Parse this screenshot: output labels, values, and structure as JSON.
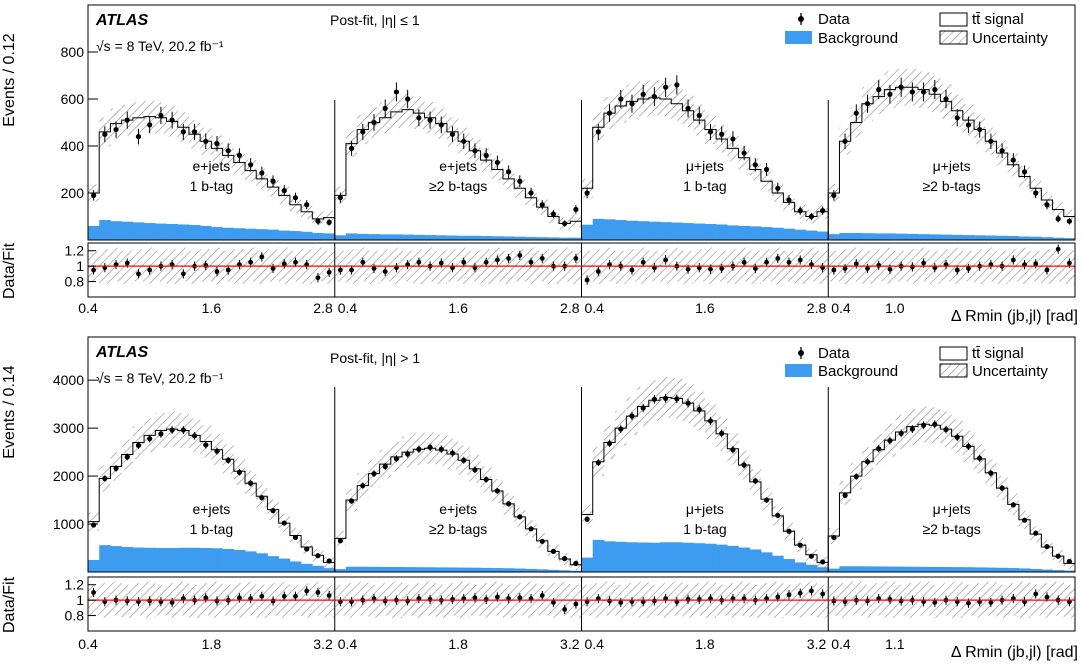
{
  "figure": {
    "experiment": "ATLAS",
    "energy_label": "√s = 8 TeV, 20.2 fb⁻¹",
    "legend": {
      "data": "Data",
      "background": "Background",
      "signal": "tt̄ signal",
      "uncertainty": "Uncertainty"
    },
    "x_axis_title": "Δ Rmin (jb,jl) [rad]",
    "ratio_ylabel": "Data/Fit"
  },
  "colors": {
    "background": "#3d9bf0",
    "ratio_line": "#ff0000",
    "hatch": "#888888"
  },
  "chart_data": [
    {
      "type": "bar",
      "title": "Post-fit, |η| ≤ 1",
      "ylabel": "Events / 0.12",
      "ylim": [
        0,
        1000
      ],
      "yticks": [
        200,
        400,
        600,
        800
      ],
      "ratio_ylim": [
        0.6,
        1.3
      ],
      "ratio_yticks": [
        "0.8",
        "1",
        "1.2"
      ],
      "x_range": [
        0.4,
        2.8
      ],
      "channels": [
        {
          "label": [
            "e+jets",
            "1 b-tag"
          ],
          "xticks": [
            "0.4",
            "1.6",
            "2.8"
          ],
          "signal": [
            200,
            460,
            495,
            510,
            520,
            525,
            520,
            505,
            480,
            450,
            420,
            390,
            360,
            330,
            295,
            260,
            225,
            190,
            150,
            120,
            90,
            95
          ],
          "data": [
            190,
            450,
            470,
            510,
            440,
            490,
            530,
            510,
            460,
            460,
            420,
            410,
            380,
            360,
            320,
            285,
            250,
            210,
            180,
            150,
            80,
            75
          ],
          "background": [
            60,
            85,
            80,
            78,
            75,
            72,
            70,
            68,
            66,
            64,
            60,
            55,
            52,
            50,
            48,
            46,
            44,
            40,
            38,
            35,
            30,
            28
          ],
          "ratio": [
            0.95,
            0.98,
            1.02,
            1.04,
            0.9,
            0.95,
            1.0,
            1.02,
            0.9,
            1.0,
            1.01,
            0.93,
            0.95,
            1.02,
            1.05,
            1.12,
            0.97,
            1.03,
            1.05,
            1.02,
            0.85,
            0.92
          ]
        },
        {
          "label": [
            "e+jets",
            "≥2 b-tags"
          ],
          "xticks": [
            "0.4",
            "1.6",
            "2.8"
          ],
          "signal": [
            190,
            410,
            470,
            500,
            520,
            545,
            555,
            540,
            520,
            495,
            460,
            420,
            380,
            340,
            300,
            260,
            220,
            180,
            140,
            100,
            70,
            80
          ],
          "data": [
            180,
            390,
            460,
            500,
            560,
            630,
            600,
            520,
            510,
            490,
            450,
            420,
            380,
            360,
            330,
            290,
            250,
            200,
            150,
            110,
            70,
            130
          ],
          "background": [
            20,
            28,
            26,
            25,
            24,
            24,
            23,
            22,
            21,
            20,
            19,
            18,
            18,
            17,
            16,
            15,
            14,
            13,
            12,
            11,
            10,
            10
          ],
          "ratio": [
            0.95,
            0.95,
            1.05,
            0.97,
            0.93,
            0.98,
            1.02,
            1.05,
            1.0,
            1.04,
            0.98,
            1.05,
            0.98,
            1.05,
            1.08,
            1.1,
            1.14,
            1.05,
            1.1,
            1.0,
            1.0,
            1.1
          ]
        },
        {
          "label": [
            "μ+jets",
            "1 b-tag"
          ],
          "xticks": [
            "0.4",
            "1.6",
            "2.8"
          ],
          "signal": [
            220,
            480,
            540,
            570,
            590,
            600,
            605,
            600,
            580,
            550,
            510,
            470,
            430,
            390,
            350,
            300,
            250,
            200,
            160,
            120,
            100,
            120
          ],
          "data": [
            200,
            460,
            540,
            600,
            580,
            620,
            610,
            650,
            660,
            560,
            530,
            460,
            450,
            430,
            370,
            320,
            300,
            220,
            170,
            125,
            100,
            125
          ],
          "background": [
            65,
            90,
            88,
            85,
            82,
            80,
            78,
            76,
            74,
            72,
            70,
            68,
            66,
            62,
            60,
            58,
            55,
            52,
            48,
            44,
            40,
            36
          ],
          "ratio": [
            0.82,
            0.93,
            1.02,
            1.0,
            0.95,
            1.05,
            0.98,
            1.08,
            1.0,
            0.96,
            0.98,
            0.96,
            0.97,
            1.0,
            1.05,
            0.97,
            1.05,
            1.1,
            1.05,
            1.08,
            1.02,
            0.98
          ]
        },
        {
          "label": [
            "μ+jets",
            "≥2 b-tags"
          ],
          "xticks": [
            "0.4",
            "1.0"
          ],
          "signal": [
            200,
            420,
            500,
            580,
            610,
            640,
            650,
            650,
            640,
            620,
            590,
            550,
            510,
            470,
            420,
            370,
            320,
            270,
            220,
            170,
            130,
            100
          ],
          "data": [
            190,
            420,
            540,
            580,
            640,
            620,
            650,
            630,
            630,
            640,
            600,
            520,
            490,
            470,
            420,
            380,
            340,
            290,
            200,
            150,
            90,
            80
          ],
          "background": [
            25,
            30,
            30,
            29,
            28,
            28,
            27,
            26,
            25,
            24,
            23,
            22,
            21,
            20,
            19,
            18,
            17,
            15,
            14,
            12,
            10,
            8
          ],
          "ratio": [
            0.95,
            0.97,
            1.03,
            0.97,
            1.01,
            0.96,
            1.0,
            0.99,
            1.04,
            0.98,
            1.02,
            0.95,
            0.97,
            1.0,
            1.02,
            1.0,
            1.08,
            1.02,
            1.03,
            0.95,
            1.22,
            1.04
          ]
        }
      ]
    },
    {
      "type": "bar",
      "title": "Post-fit, |η| > 1",
      "ylabel": "Events / 0.14",
      "ylim": [
        0,
        4900
      ],
      "yticks": [
        1000,
        2000,
        3000,
        4000
      ],
      "ratio_ylim": [
        0.6,
        1.3
      ],
      "ratio_yticks": [
        "0.8",
        "1",
        "1.2"
      ],
      "x_range": [
        0.4,
        3.2
      ],
      "channels": [
        {
          "label": [
            "e+jets",
            "1 b-tag"
          ],
          "xticks": [
            "0.4",
            "1.8",
            "3.2"
          ],
          "signal": [
            1050,
            1950,
            2200,
            2450,
            2700,
            2850,
            2950,
            2980,
            2950,
            2850,
            2720,
            2550,
            2350,
            2100,
            1850,
            1580,
            1300,
            1020,
            760,
            520,
            350,
            200
          ],
          "data": [
            980,
            1950,
            2160,
            2400,
            2640,
            2780,
            2880,
            2960,
            2960,
            2840,
            2650,
            2520,
            2330,
            2080,
            1850,
            1550,
            1280,
            1020,
            720,
            480,
            340,
            230
          ],
          "background": [
            250,
            560,
            540,
            520,
            510,
            505,
            500,
            500,
            505,
            505,
            500,
            495,
            480,
            460,
            430,
            390,
            330,
            280,
            220,
            170,
            130,
            80
          ],
          "ratio": [
            1.1,
            0.98,
            1.0,
            0.99,
            0.98,
            0.99,
            0.98,
            0.97,
            1.02,
            1.0,
            1.03,
            0.99,
            1.0,
            1.03,
            1.02,
            1.05,
            0.99,
            1.05,
            1.05,
            1.12,
            1.1,
            1.06
          ]
        },
        {
          "label": [
            "e+jets",
            "≥2 b-tags"
          ],
          "xticks": [
            "0.4",
            "1.8",
            "3.2"
          ],
          "signal": [
            700,
            1500,
            1800,
            2050,
            2250,
            2400,
            2500,
            2560,
            2580,
            2540,
            2460,
            2330,
            2150,
            1930,
            1690,
            1420,
            1150,
            900,
            650,
            430,
            270,
            150
          ],
          "data": [
            650,
            1480,
            1800,
            2050,
            2200,
            2360,
            2460,
            2560,
            2600,
            2560,
            2480,
            2330,
            2130,
            1930,
            1690,
            1420,
            1150,
            900,
            640,
            430,
            280,
            180
          ],
          "background": [
            60,
            110,
            110,
            108,
            106,
            104,
            102,
            100,
            98,
            96,
            94,
            92,
            90,
            86,
            82,
            78,
            72,
            64,
            56,
            46,
            36,
            26
          ],
          "ratio": [
            0.98,
            0.98,
            1.0,
            1.02,
            0.99,
            1.0,
            0.99,
            1.02,
            1.01,
            1.0,
            1.01,
            1.02,
            1.03,
            1.01,
            1.04,
            1.02,
            1.03,
            1.02,
            1.06,
            0.97,
            0.88,
            0.95
          ]
        },
        {
          "label": [
            "μ+jets",
            "1 b-tag"
          ],
          "xticks": [
            "0.4",
            "1.8",
            "3.2"
          ],
          "signal": [
            1200,
            2300,
            2700,
            3000,
            3250,
            3450,
            3580,
            3640,
            3620,
            3520,
            3360,
            3150,
            2880,
            2570,
            2230,
            1880,
            1520,
            1170,
            850,
            560,
            360,
            200
          ],
          "data": [
            1100,
            2280,
            2680,
            2980,
            3250,
            3420,
            3600,
            3620,
            3610,
            3520,
            3390,
            3150,
            2890,
            2550,
            2230,
            1900,
            1500,
            1180,
            850,
            560,
            330,
            210
          ],
          "background": [
            300,
            670,
            640,
            630,
            620,
            615,
            610,
            620,
            620,
            610,
            600,
            590,
            570,
            545,
            510,
            470,
            410,
            340,
            270,
            200,
            150,
            100
          ],
          "ratio": [
            0.98,
            1.02,
            0.99,
            0.97,
            0.98,
            0.98,
            0.99,
            1.02,
            0.98,
            1.01,
            1.01,
            1.02,
            1.0,
            1.02,
            1.02,
            1.0,
            1.02,
            1.04,
            1.07,
            1.09,
            1.12,
            1.08
          ]
        },
        {
          "label": [
            "μ+jets",
            "≥2 b-tags"
          ],
          "xticks": [
            "0.4",
            "1.1"
          ],
          "signal": [
            750,
            1650,
            2000,
            2300,
            2550,
            2750,
            2920,
            3030,
            3080,
            3060,
            2980,
            2830,
            2620,
            2360,
            2070,
            1750,
            1410,
            1090,
            790,
            520,
            330,
            180
          ],
          "data": [
            720,
            1600,
            1990,
            2300,
            2570,
            2740,
            2890,
            2980,
            3060,
            3080,
            2970,
            2810,
            2620,
            2370,
            2060,
            1750,
            1400,
            1080,
            810,
            530,
            330,
            220
          ],
          "background": [
            70,
            120,
            120,
            118,
            116,
            114,
            112,
            110,
            108,
            106,
            104,
            102,
            100,
            96,
            92,
            88,
            82,
            74,
            64,
            52,
            40,
            30
          ],
          "ratio": [
            0.99,
            0.98,
            1.0,
            0.99,
            1.02,
            1.01,
            0.99,
            1.0,
            0.98,
            0.97,
            1.0,
            0.98,
            0.96,
            0.98,
            0.97,
            1.0,
            1.02,
            0.98,
            1.08,
            1.04,
            1.0,
            0.98
          ]
        }
      ]
    }
  ]
}
